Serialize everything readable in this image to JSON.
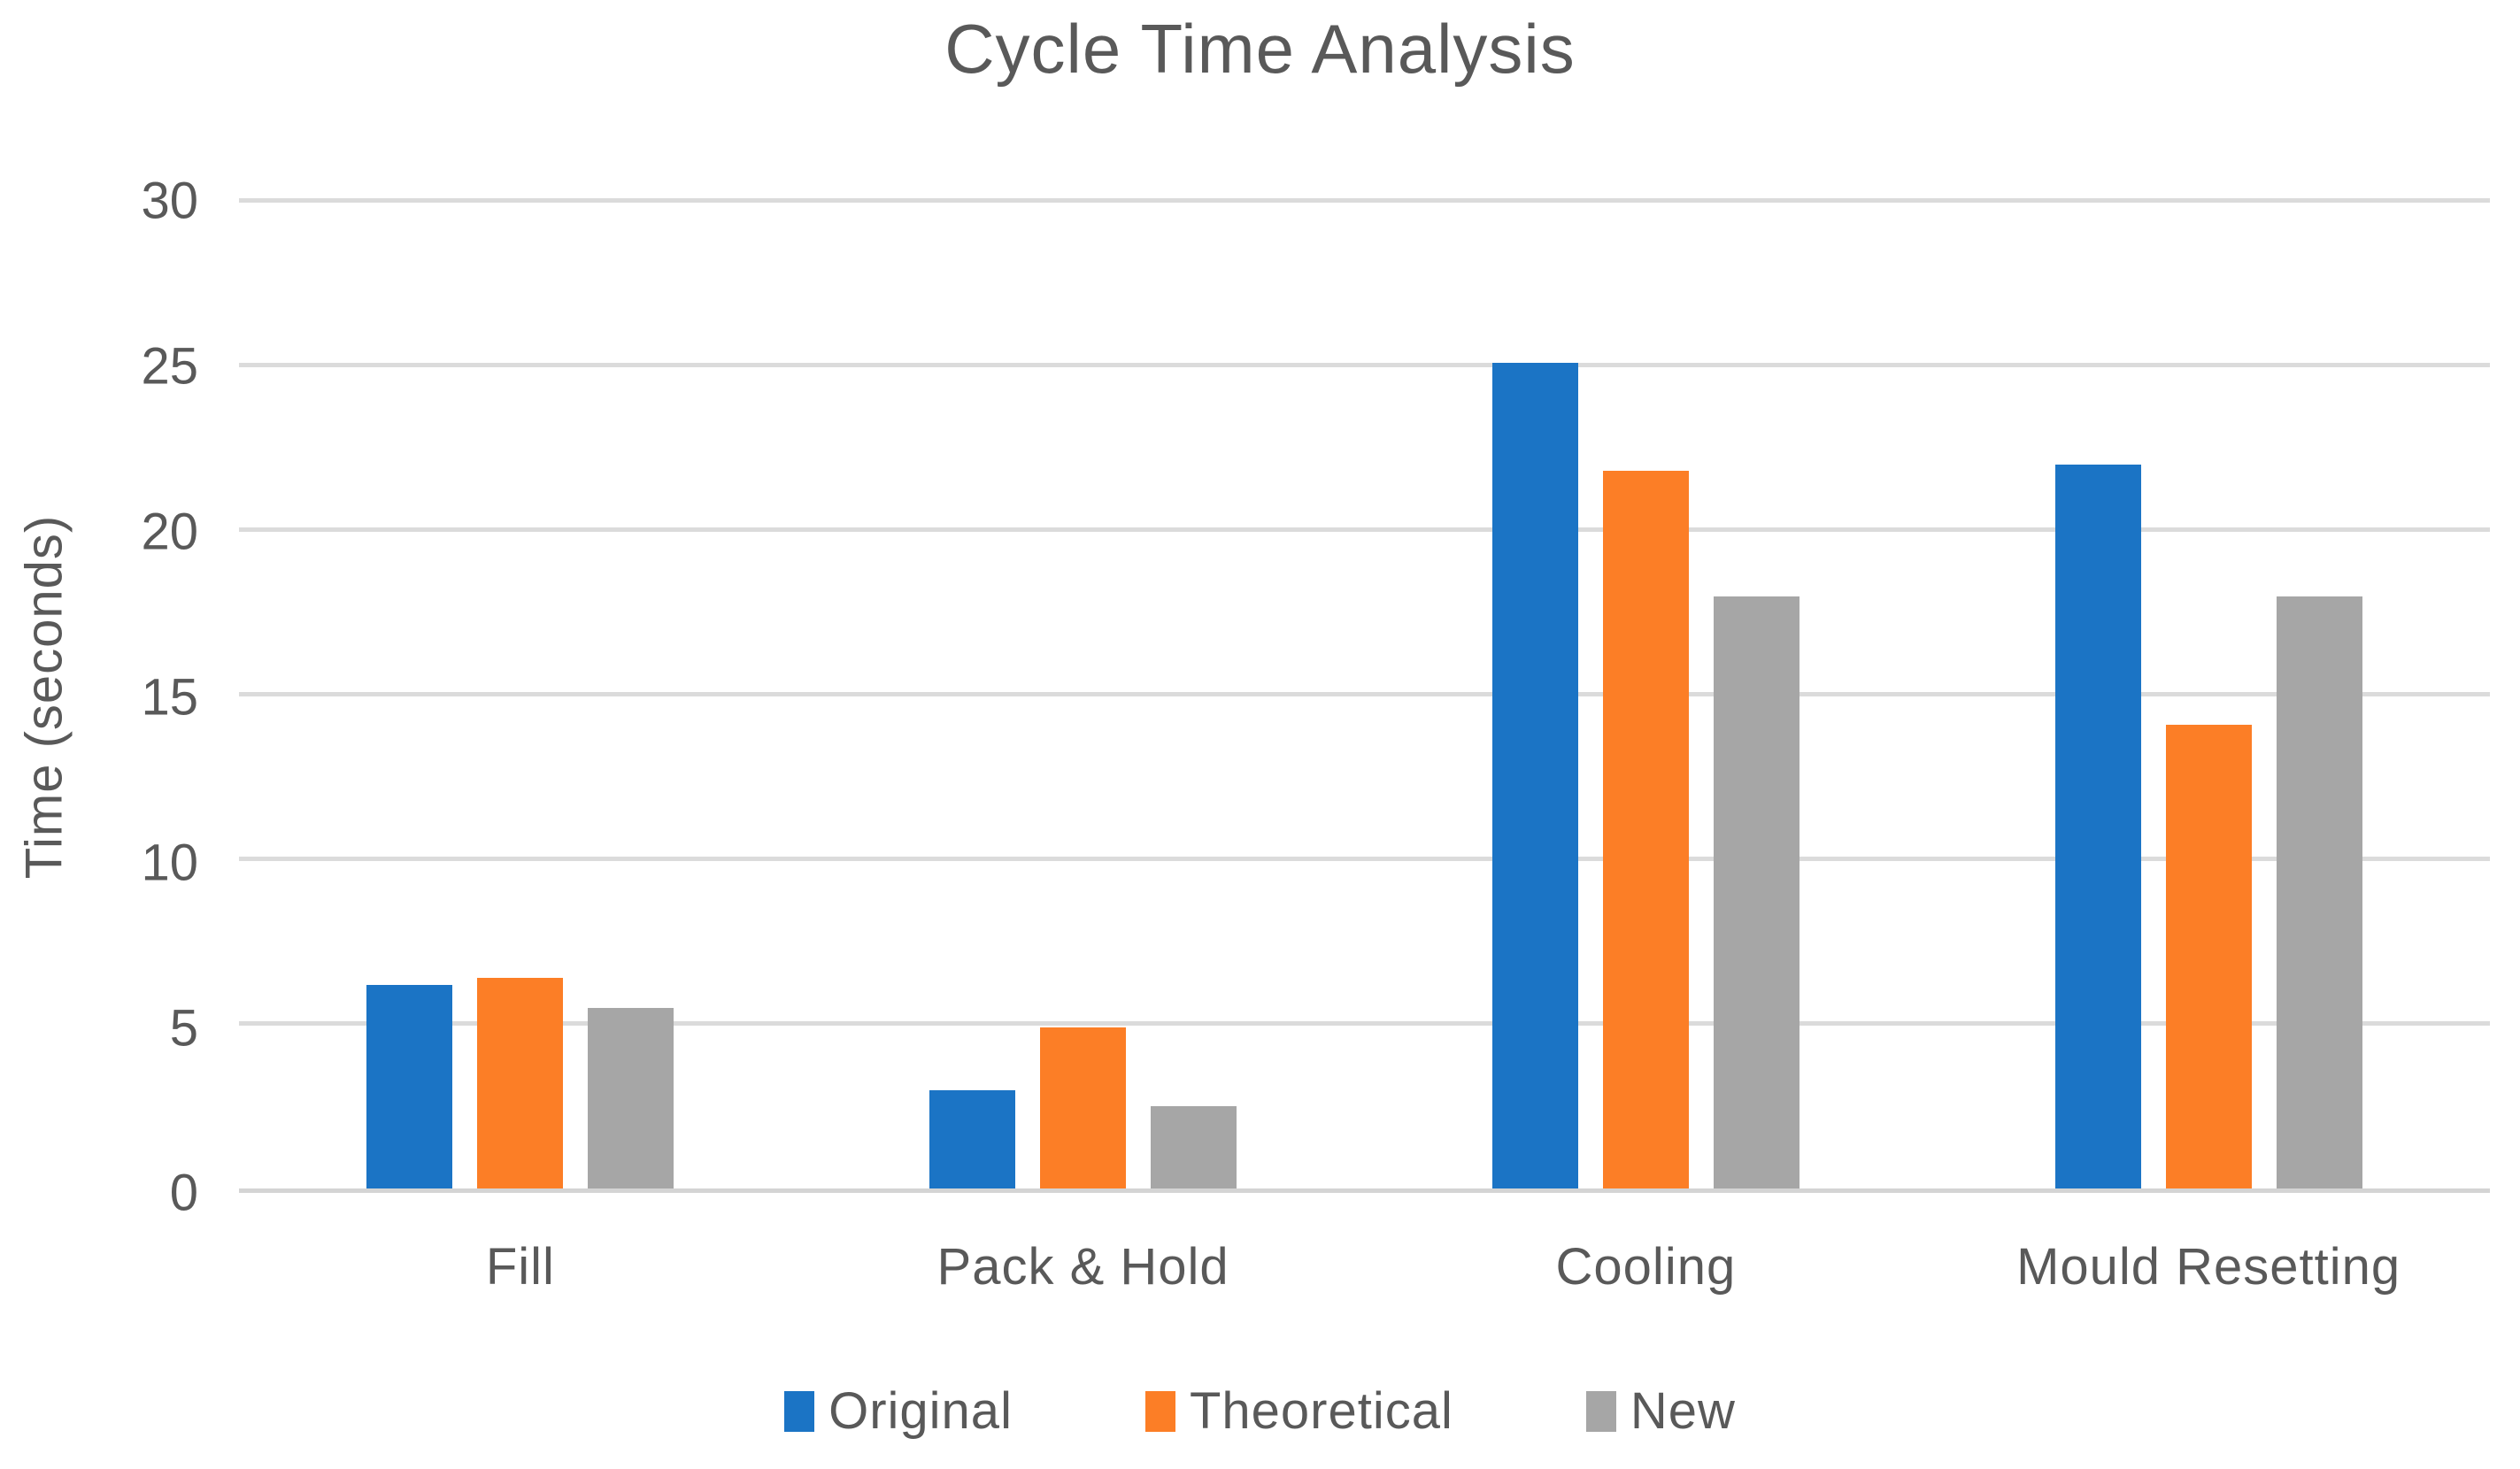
{
  "title": "Cycle Time Analysis",
  "colors": {
    "text": "#595959",
    "gridline": "#dbdbdb",
    "axis_line": "#d4d4d4",
    "background": "#ffffff"
  },
  "chart_data": {
    "type": "bar",
    "title": "Cycle Time Analysis",
    "xlabel": "",
    "ylabel": "Time (seconds)",
    "ylim": [
      0,
      30
    ],
    "yticks": [
      0,
      5,
      10,
      15,
      20,
      25,
      30
    ],
    "grid": true,
    "legend_position": "bottom",
    "categories": [
      "Fill",
      "Pack & Hold",
      "Cooling",
      "Mould Resetting"
    ],
    "series": [
      {
        "name": "Original",
        "color": "#1B74C5",
        "values": [
          6.2,
          3.0,
          25.1,
          22.0
        ]
      },
      {
        "name": "Theoretical",
        "color": "#FC7E26",
        "values": [
          6.4,
          4.9,
          21.8,
          14.1
        ]
      },
      {
        "name": "New",
        "color": "#A6A6A6",
        "values": [
          5.5,
          2.5,
          18.0,
          18.0
        ]
      }
    ]
  }
}
